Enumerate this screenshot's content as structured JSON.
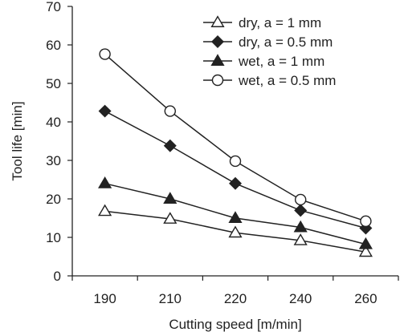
{
  "chart_data": {
    "type": "line",
    "categories": [
      "190",
      "210",
      "220",
      "240",
      "260"
    ],
    "xlabel": "Cutting speed [m/min]",
    "ylabel": "Tool life [min]",
    "ylim": [
      0,
      70
    ],
    "yticks": [
      0,
      10,
      20,
      30,
      40,
      50,
      60,
      70
    ],
    "grid": false,
    "legend_position": "top-right",
    "series": [
      {
        "name": "dry, a = 1 mm",
        "marker": "triangle-open",
        "values": [
          16.8,
          14.8,
          11.2,
          9.2,
          6.2
        ]
      },
      {
        "name": "dry, a = 0.5 mm",
        "marker": "diamond-filled",
        "values": [
          42.8,
          33.8,
          24,
          17,
          12.4
        ]
      },
      {
        "name": "wet, a = 1 mm",
        "marker": "triangle-filled",
        "values": [
          24,
          20,
          15,
          12.6,
          8.2
        ]
      },
      {
        "name": "wet, a = 0.5 mm",
        "marker": "circle-open",
        "values": [
          57.6,
          42.8,
          29.8,
          19.8,
          14.2
        ]
      }
    ],
    "colors": {
      "line": "#222222",
      "marker_fill": "#222222",
      "open_fill": "#ffffff"
    }
  }
}
